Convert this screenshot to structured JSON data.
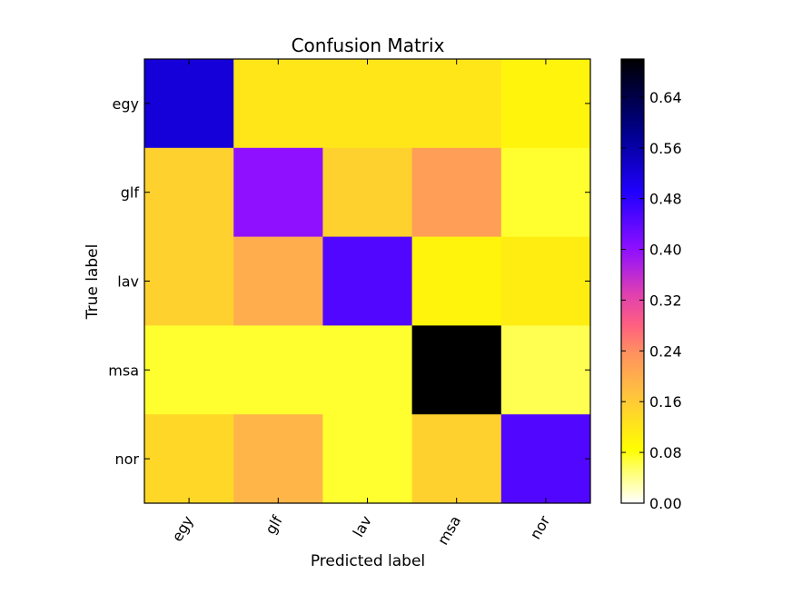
{
  "chart_data": {
    "type": "heatmap",
    "title": "Confusion Matrix",
    "xlabel": "Predicted label",
    "ylabel": "True label",
    "x_categories": [
      "egy",
      "glf",
      "lav",
      "msa",
      "nor"
    ],
    "y_categories": [
      "egy",
      "glf",
      "lav",
      "msa",
      "nor"
    ],
    "values": [
      [
        0.52,
        0.12,
        0.12,
        0.12,
        0.1
      ],
      [
        0.15,
        0.4,
        0.15,
        0.22,
        0.07
      ],
      [
        0.15,
        0.2,
        0.45,
        0.1,
        0.11
      ],
      [
        0.07,
        0.07,
        0.07,
        0.7,
        0.06
      ],
      [
        0.14,
        0.19,
        0.07,
        0.15,
        0.45
      ]
    ],
    "colormap": "gnuplot2_r",
    "colorbar_range": [
      0.0,
      0.7
    ],
    "colorbar_ticks": [
      "0.00",
      "0.08",
      "0.16",
      "0.24",
      "0.32",
      "0.40",
      "0.48",
      "0.56",
      "0.64"
    ],
    "x_tick_rotation": 60
  }
}
